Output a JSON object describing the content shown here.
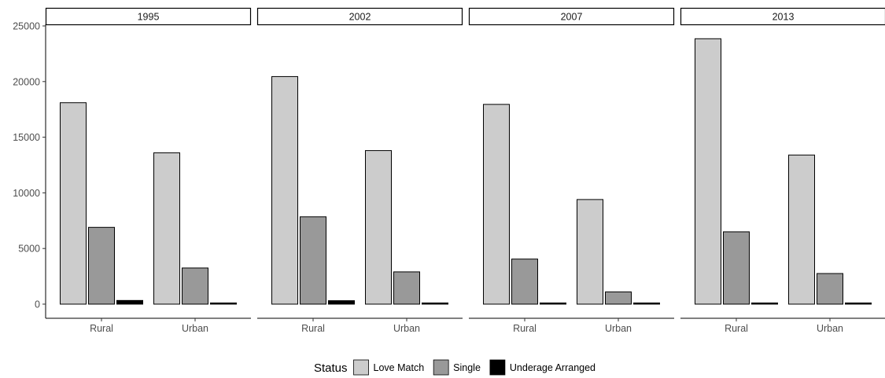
{
  "chart_data": {
    "type": "bar",
    "facet_variable": "year",
    "panels": [
      {
        "strip_label": "1995",
        "categories": [
          "Rural",
          "Urban"
        ],
        "series": [
          {
            "name": "Love Match",
            "values": [
              18100,
              13600
            ]
          },
          {
            "name": "Single",
            "values": [
              6900,
              3250
            ]
          },
          {
            "name": "Underage Arranged",
            "values": [
              330,
              60
            ]
          }
        ]
      },
      {
        "strip_label": "2002",
        "categories": [
          "Rural",
          "Urban"
        ],
        "series": [
          {
            "name": "Love Match",
            "values": [
              20450,
              13800
            ]
          },
          {
            "name": "Single",
            "values": [
              7850,
              2900
            ]
          },
          {
            "name": "Underage Arranged",
            "values": [
              310,
              50
            ]
          }
        ]
      },
      {
        "strip_label": "2007",
        "categories": [
          "Rural",
          "Urban"
        ],
        "series": [
          {
            "name": "Love Match",
            "values": [
              17950,
              9400
            ]
          },
          {
            "name": "Single",
            "values": [
              4050,
              1100
            ]
          },
          {
            "name": "Underage Arranged",
            "values": [
              50,
              30
            ]
          }
        ]
      },
      {
        "strip_label": "2013",
        "categories": [
          "Rural",
          "Urban"
        ],
        "series": [
          {
            "name": "Love Match",
            "values": [
              23850,
              13400
            ]
          },
          {
            "name": "Single",
            "values": [
              6500,
              2750
            ]
          },
          {
            "name": "Underage Arranged",
            "values": [
              70,
              30
            ]
          }
        ]
      }
    ],
    "series_colors": {
      "Love Match": "#cccccc",
      "Single": "#999999",
      "Underage Arranged": "#000000"
    },
    "ylim": [
      0,
      25000
    ],
    "yticks": [
      0,
      5000,
      10000,
      15000,
      20000,
      25000
    ],
    "xlabel": "",
    "ylabel": "",
    "legend": {
      "title": "Status",
      "position": "bottom",
      "entries": [
        "Love Match",
        "Single",
        "Underage Arranged"
      ]
    },
    "grid": false
  }
}
